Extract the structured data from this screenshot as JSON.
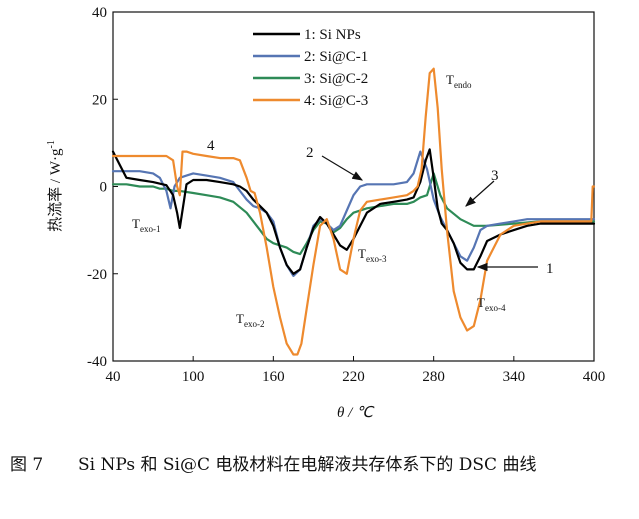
{
  "caption": {
    "figure_label": "图 7",
    "text": "Si NPs 和 Si@C 电极材料在电解液共存体系下的 DSC 曲线"
  },
  "chart_data": {
    "type": "line",
    "xlabel": "θ / ℃",
    "ylabel": "热流率 / W·g",
    "ylabel_sup": "-1",
    "xlim": [
      40,
      400
    ],
    "ylim": [
      -40,
      40
    ],
    "xticks": [
      40,
      100,
      160,
      220,
      280,
      340,
      400
    ],
    "yticks": [
      -40,
      -20,
      0,
      20,
      40
    ],
    "legend_position": "top-center",
    "series": [
      {
        "name": "1: Si NPs",
        "color": "#000000",
        "x": [
          40,
          45,
          50,
          60,
          70,
          80,
          85,
          88,
          90,
          95,
          100,
          110,
          120,
          130,
          135,
          140,
          145,
          150,
          155,
          160,
          165,
          170,
          175,
          180,
          185,
          190,
          195,
          200,
          205,
          210,
          215,
          220,
          230,
          240,
          250,
          260,
          265,
          270,
          274,
          277,
          280,
          283,
          286,
          290,
          295,
          300,
          305,
          310,
          315,
          320,
          330,
          340,
          350,
          360,
          380,
          400
        ],
        "y": [
          8,
          5,
          2,
          1.5,
          1,
          0.3,
          -2,
          -6,
          -9.5,
          0.5,
          1.5,
          1.5,
          1,
          0.5,
          0,
          -1,
          -3,
          -4.5,
          -6,
          -9,
          -14,
          -18,
          -20,
          -19,
          -14,
          -9.5,
          -7,
          -8.5,
          -11,
          -13.5,
          -14.5,
          -12,
          -6,
          -4,
          -3.5,
          -3,
          -2.5,
          1,
          6,
          8.5,
          2,
          -5,
          -8.5,
          -10,
          -13,
          -17.5,
          -19,
          -19,
          -16,
          -12.5,
          -11,
          -10,
          -9,
          -8.5,
          -8.5,
          -8.5
        ]
      },
      {
        "name": "2: Si@C-1",
        "color": "#5675b3",
        "x": [
          40,
          50,
          60,
          70,
          75,
          80,
          83,
          86,
          90,
          95,
          100,
          110,
          120,
          130,
          135,
          140,
          145,
          150,
          155,
          160,
          165,
          170,
          175,
          180,
          185,
          190,
          195,
          200,
          205,
          210,
          215,
          220,
          225,
          230,
          240,
          250,
          260,
          265,
          270,
          275,
          280,
          285,
          290,
          295,
          300,
          305,
          310,
          315,
          320,
          330,
          340,
          350,
          360,
          380,
          400
        ],
        "y": [
          3.5,
          3.5,
          3.5,
          3,
          2,
          -1,
          -5,
          0,
          2,
          2.5,
          3,
          2.5,
          2,
          1,
          -1,
          -3,
          -4.5,
          -5,
          -6,
          -8,
          -14,
          -18,
          -20.5,
          -19,
          -14,
          -9,
          -7.5,
          -8.5,
          -10,
          -9,
          -5.5,
          -2,
          0,
          0.5,
          0.5,
          0.5,
          1,
          3,
          8,
          4,
          -3,
          -7,
          -10,
          -13,
          -16,
          -17,
          -14,
          -10,
          -9,
          -8.5,
          -8,
          -7.5,
          -7.5,
          -7.5,
          -7.5
        ]
      },
      {
        "name": "3: Si@C-2",
        "color": "#2e8b57",
        "x": [
          40,
          50,
          60,
          70,
          75,
          80,
          85,
          90,
          100,
          110,
          120,
          130,
          140,
          150,
          155,
          160,
          165,
          170,
          175,
          180,
          185,
          190,
          195,
          200,
          205,
          210,
          215,
          220,
          230,
          240,
          250,
          260,
          265,
          270,
          275,
          280,
          285,
          290,
          300,
          310,
          320,
          340,
          360,
          380,
          400
        ],
        "y": [
          0.5,
          0.5,
          0,
          0,
          -0.5,
          -0.5,
          -1,
          -1,
          -1.5,
          -2,
          -2.5,
          -3.5,
          -6,
          -10,
          -12,
          -13,
          -13.5,
          -14,
          -15,
          -15.5,
          -13,
          -10,
          -8,
          -8.5,
          -10.5,
          -9.5,
          -7.5,
          -6,
          -5,
          -4.5,
          -4,
          -4,
          -3.5,
          -2.5,
          -2,
          3,
          -2,
          -5,
          -7.5,
          -9,
          -9,
          -8.5,
          -8,
          -8,
          -8
        ]
      },
      {
        "name": "4: Si@C-3",
        "color": "#ee8a2e",
        "x": [
          40,
          50,
          60,
          70,
          75,
          80,
          85,
          88,
          90,
          92,
          95,
          100,
          110,
          120,
          130,
          135,
          140,
          143,
          146,
          150,
          155,
          160,
          165,
          170,
          175,
          178,
          181,
          185,
          190,
          195,
          200,
          205,
          210,
          215,
          220,
          225,
          230,
          240,
          250,
          260,
          265,
          268,
          271,
          274,
          277,
          280,
          283,
          286,
          290,
          295,
          300,
          305,
          310,
          315,
          320,
          330,
          340,
          350,
          360,
          380,
          398,
          399,
          400
        ],
        "y": [
          7,
          7,
          7,
          7,
          7,
          7,
          6,
          0,
          -2,
          8,
          8,
          7.5,
          7,
          6.5,
          6.5,
          6,
          2,
          -1,
          -1.5,
          -6,
          -14,
          -23,
          -30,
          -36,
          -38.5,
          -38.5,
          -36,
          -28,
          -18,
          -9,
          -7.5,
          -12,
          -19,
          -20,
          -12,
          -5.5,
          -3.5,
          -3,
          -2.5,
          -2,
          -1,
          0,
          4,
          16,
          26,
          27,
          18,
          4,
          -10,
          -24,
          -30,
          -33,
          -32,
          -26,
          -17,
          -11,
          -9,
          -8.5,
          -8,
          -8,
          -8,
          0,
          0
        ]
      }
    ],
    "annotations": {
      "t_endo": {
        "main": "T",
        "sub": "endo"
      },
      "t_exo1": {
        "main": "T",
        "sub": "exo-1"
      },
      "t_exo2": {
        "main": "T",
        "sub": "exo-2"
      },
      "t_exo3": {
        "main": "T",
        "sub": "exo-3"
      },
      "t_exo4": {
        "main": "T",
        "sub": "exo-4"
      },
      "curve_labels": [
        "1",
        "2",
        "3",
        "4"
      ]
    }
  }
}
